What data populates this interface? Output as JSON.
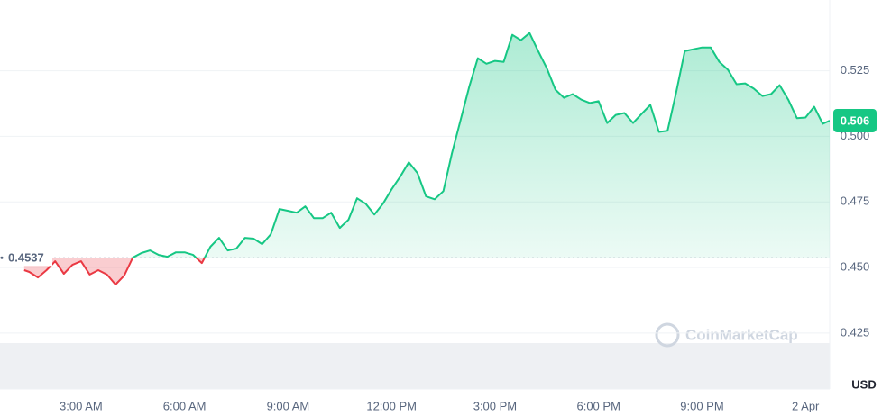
{
  "chart_data": {
    "type": "line",
    "x": [
      1.35,
      1.5,
      1.75,
      2.0,
      2.25,
      2.5,
      2.75,
      3.0,
      3.25,
      3.5,
      3.75,
      4.0,
      4.25,
      4.5,
      4.75,
      5.0,
      5.25,
      5.5,
      5.75,
      6.0,
      6.25,
      6.5,
      6.75,
      7.0,
      7.25,
      7.5,
      7.75,
      8.0,
      8.25,
      8.5,
      8.75,
      9.0,
      9.25,
      9.5,
      9.75,
      10.0,
      10.25,
      10.5,
      10.75,
      11.0,
      11.25,
      11.5,
      11.75,
      12.0,
      12.25,
      12.5,
      12.75,
      13.0,
      13.25,
      13.5,
      13.75,
      14.0,
      14.25,
      14.5,
      14.75,
      15.0,
      15.25,
      15.5,
      15.75,
      16.0,
      16.25,
      16.5,
      16.75,
      17.0,
      17.25,
      17.5,
      17.75,
      18.0,
      18.25,
      18.5,
      18.75,
      19.0,
      19.25,
      19.5,
      19.75,
      20.0,
      20.25,
      20.5,
      20.75,
      21.0,
      21.25,
      21.5,
      21.75,
      22.0,
      22.25,
      22.5,
      22.75,
      23.0,
      23.25,
      23.5,
      23.75,
      24.0,
      24.25,
      24.5,
      24.7
    ],
    "values": [
      0.449,
      0.4483,
      0.4462,
      0.449,
      0.4524,
      0.4476,
      0.451,
      0.4524,
      0.4473,
      0.449,
      0.4473,
      0.4435,
      0.4469,
      0.4538,
      0.4555,
      0.4565,
      0.4548,
      0.4541,
      0.4558,
      0.4558,
      0.4548,
      0.4517,
      0.4579,
      0.4613,
      0.4565,
      0.4572,
      0.4613,
      0.461,
      0.4589,
      0.4627,
      0.4723,
      0.4716,
      0.4709,
      0.4733,
      0.4688,
      0.4688,
      0.4709,
      0.4651,
      0.4682,
      0.4764,
      0.4743,
      0.4702,
      0.4743,
      0.4798,
      0.4846,
      0.4901,
      0.486,
      0.4771,
      0.476,
      0.4791,
      0.4935,
      0.5062,
      0.5188,
      0.5298,
      0.5277,
      0.5288,
      0.5284,
      0.5387,
      0.5367,
      0.5394,
      0.5325,
      0.526,
      0.5178,
      0.5147,
      0.5161,
      0.514,
      0.5127,
      0.5134,
      0.5051,
      0.5082,
      0.5089,
      0.5051,
      0.5086,
      0.512,
      0.5017,
      0.5021,
      0.5168,
      0.5325,
      0.5332,
      0.5339,
      0.5339,
      0.5284,
      0.5254,
      0.5199,
      0.5202,
      0.5182,
      0.5154,
      0.5161,
      0.5195,
      0.514,
      0.5069,
      0.5072,
      0.5113,
      0.5048,
      0.506
    ],
    "color_up": "#16c784",
    "color_down": "#ea3943",
    "reference_line": 0.4537,
    "current_price": 0.506,
    "currency": "USD",
    "watermark": "CoinMarketCap",
    "xlim": [
      0.65,
      24.7
    ],
    "xticks": [
      {
        "value": 3,
        "label": "3:00 AM"
      },
      {
        "value": 6,
        "label": "6:00 AM"
      },
      {
        "value": 9,
        "label": "9:00 AM"
      },
      {
        "value": 12,
        "label": "12:00 PM"
      },
      {
        "value": 15,
        "label": "3:00 PM"
      },
      {
        "value": 18,
        "label": "6:00 PM"
      },
      {
        "value": 21,
        "label": "9:00 PM"
      },
      {
        "value": 24,
        "label": "2 Apr"
      }
    ],
    "ylim": [
      0.404,
      0.552
    ],
    "yticks": [
      0.425,
      {
        "value": 0.45,
        "label": "0.450"
      },
      0.475,
      {
        "value": 0.5,
        "label": "0.500"
      },
      0.525
    ],
    "grid": true
  }
}
